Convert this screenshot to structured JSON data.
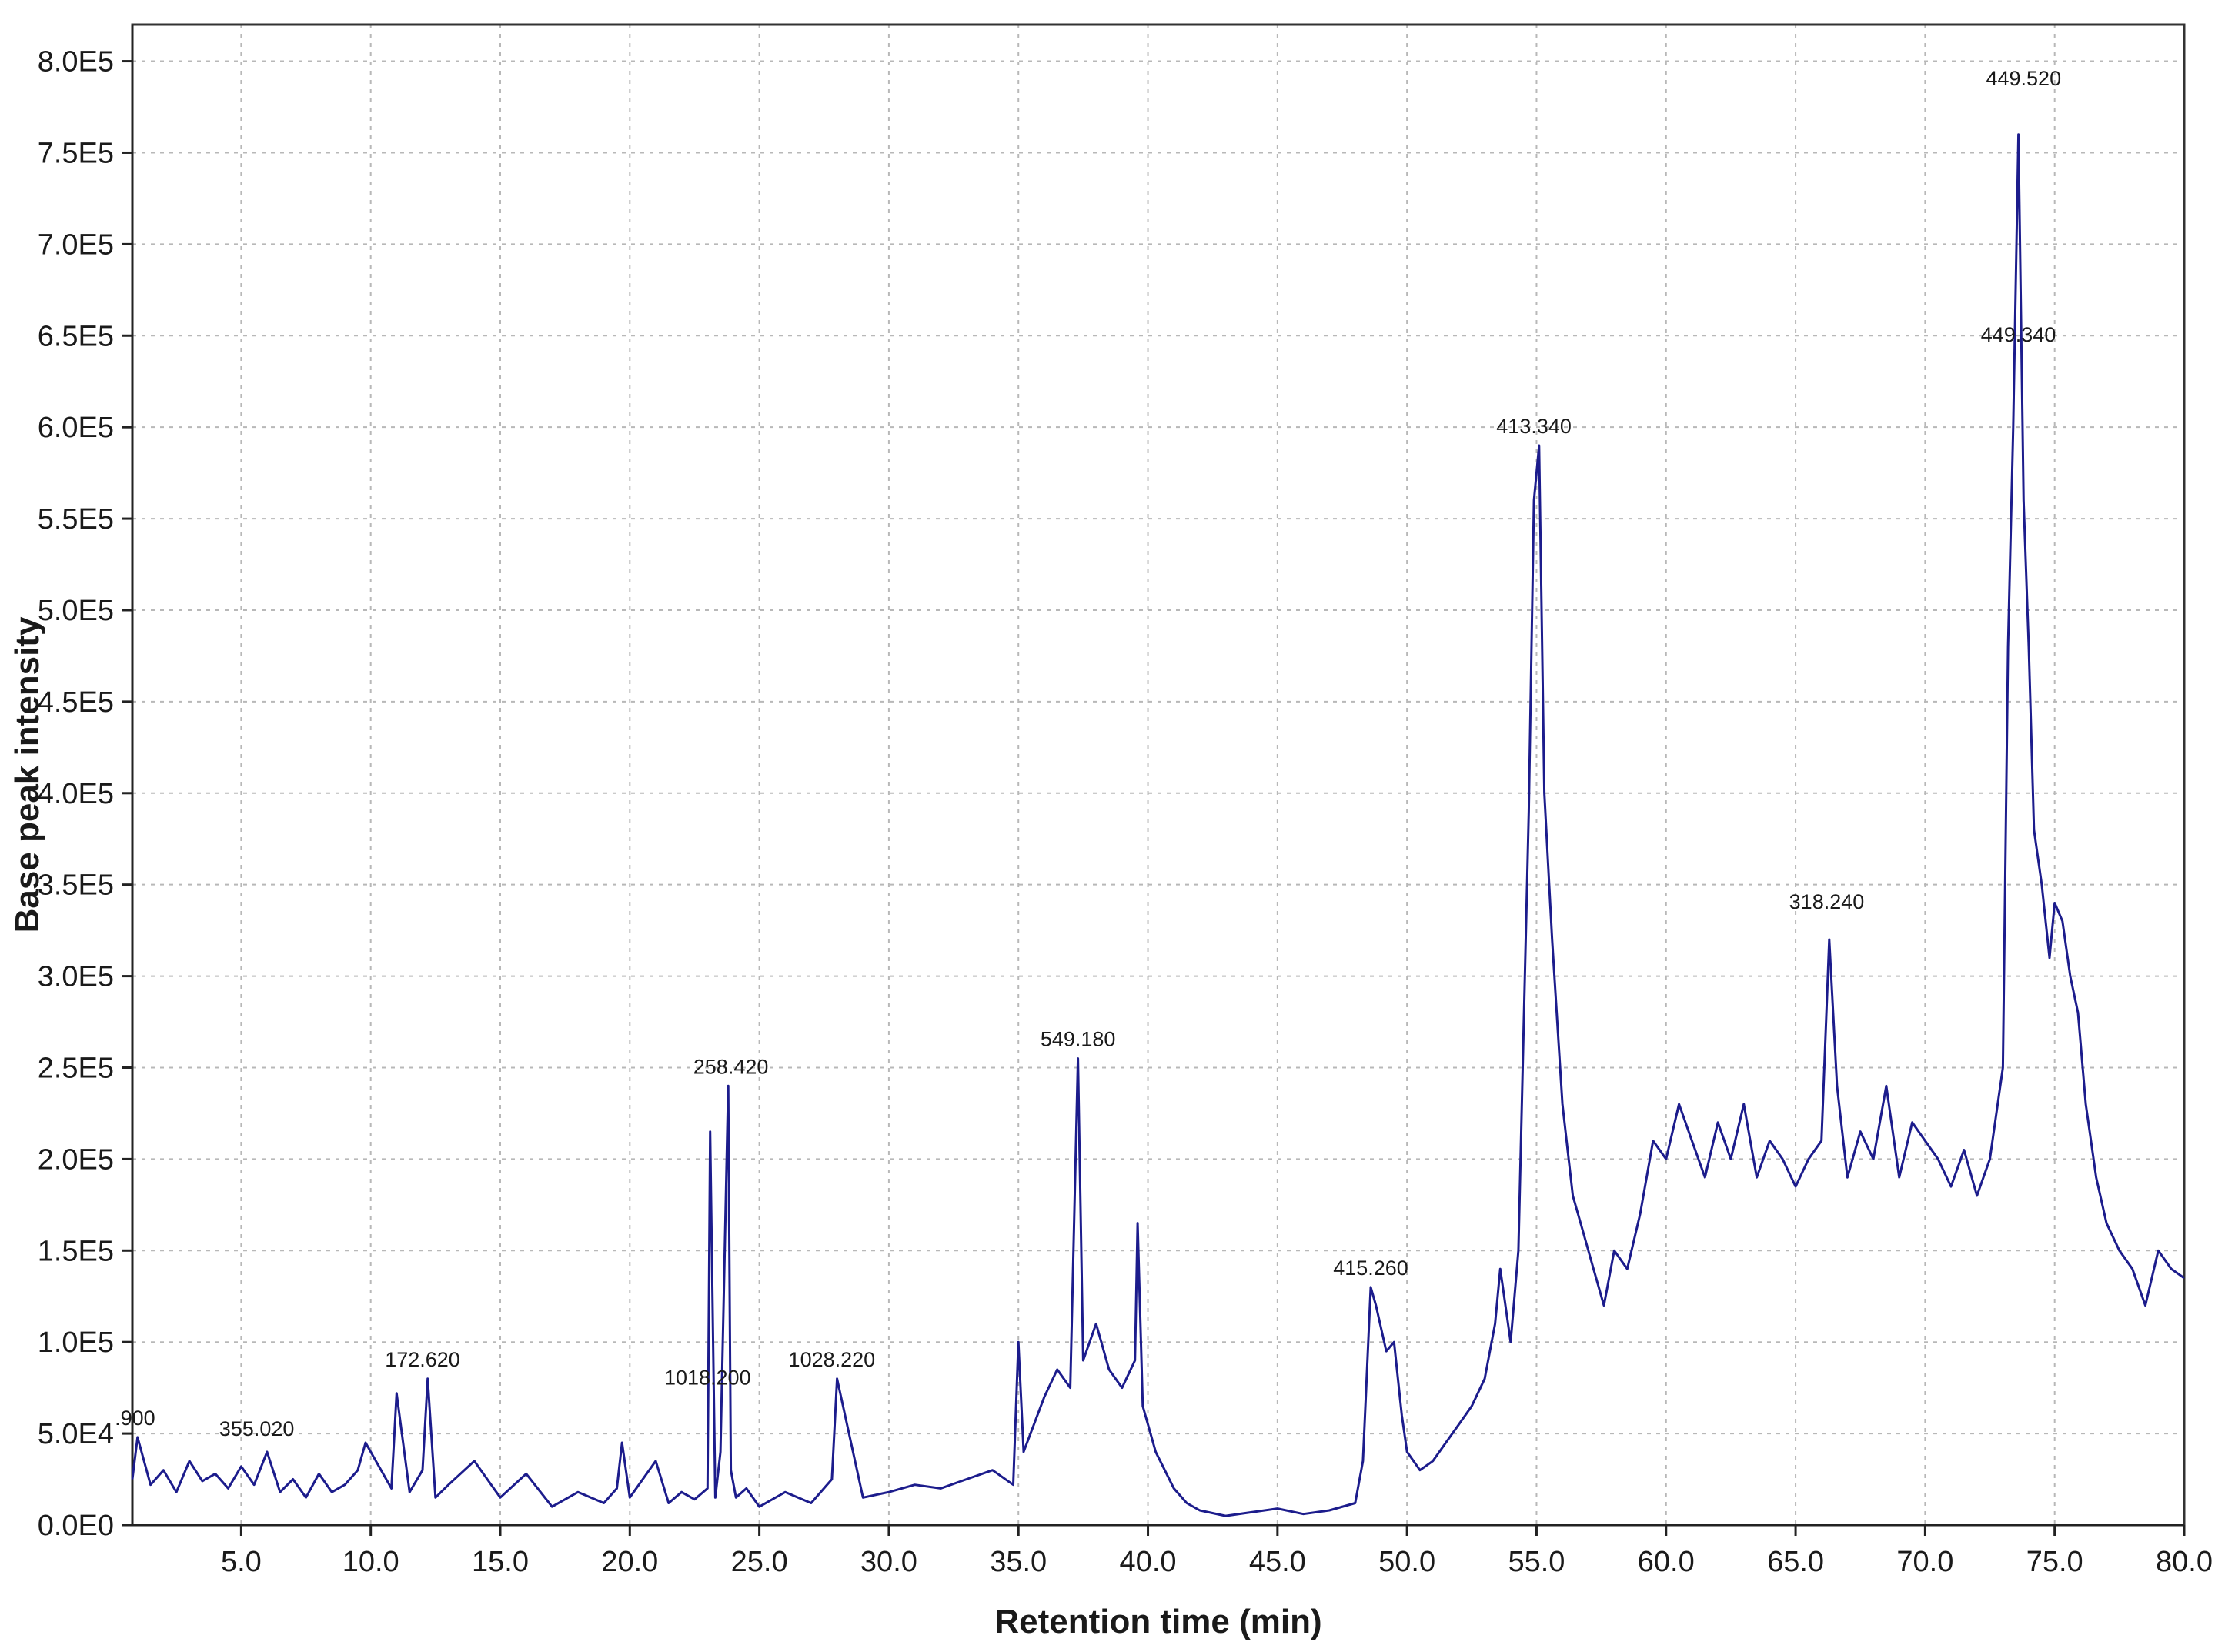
{
  "chart_data": {
    "type": "line",
    "title": "",
    "xlabel": "Retention time (min)",
    "ylabel": "Base peak intensity",
    "xlim": [
      0.8,
      80.0
    ],
    "ylim": [
      0,
      820000
    ],
    "grid": true,
    "x_ticks": [
      5,
      10,
      15,
      20,
      25,
      30,
      35,
      40,
      45,
      50,
      55,
      60,
      65,
      70,
      75,
      80
    ],
    "x_tick_labels": [
      "5.0",
      "10.0",
      "15.0",
      "20.0",
      "25.0",
      "30.0",
      "35.0",
      "40.0",
      "45.0",
      "50.0",
      "55.0",
      "60.0",
      "65.0",
      "70.0",
      "75.0",
      "80.0"
    ],
    "y_ticks": [
      0,
      50000,
      100000,
      150000,
      200000,
      250000,
      300000,
      350000,
      400000,
      450000,
      500000,
      550000,
      600000,
      650000,
      700000,
      750000,
      800000
    ],
    "y_tick_labels": [
      "0.0E0",
      "5.0E4",
      "1.0E5",
      "1.5E5",
      "2.0E5",
      "2.5E5",
      "3.0E5",
      "3.5E5",
      "4.0E5",
      "4.5E5",
      "5.0E5",
      "5.5E5",
      "6.0E5",
      "6.5E5",
      "7.0E5",
      "7.5E5",
      "8.0E5"
    ],
    "line_color": "#1c1c8c",
    "grid_color": "#b8b8b8",
    "series": [
      {
        "x": [
          0.8,
          1.0,
          1.5,
          2.0,
          2.5,
          3.0,
          3.5,
          4.0,
          4.5,
          5.0,
          5.5,
          6.0,
          6.5,
          7.0,
          7.5,
          8.0,
          8.5,
          9.0,
          9.5,
          9.8,
          10.2,
          10.8,
          11.0,
          11.5,
          12.0,
          12.2,
          12.5,
          13.0,
          14.0,
          15.0,
          16.0,
          17.0,
          18.0,
          19.0,
          19.5,
          19.7,
          20.0,
          21.0,
          21.5,
          22.0,
          22.5,
          23.0,
          23.1,
          23.3,
          23.5,
          23.8,
          23.9,
          24.1,
          24.5,
          25.0,
          26.0,
          27.0,
          27.8,
          28.0,
          29.0,
          30.0,
          31.0,
          32.0,
          33.0,
          34.0,
          34.8,
          35.0,
          35.2,
          36.0,
          36.5,
          37.0,
          37.3,
          37.5,
          38.0,
          38.5,
          39.0,
          39.5,
          39.6,
          39.8,
          40.3,
          41.0,
          41.5,
          42.0,
          43.0,
          44.0,
          45.0,
          46.0,
          47.0,
          48.0,
          48.3,
          48.6,
          48.8,
          49.2,
          49.5,
          49.8,
          50.0,
          50.5,
          51.0,
          51.5,
          52.0,
          52.5,
          53.0,
          53.4,
          53.6,
          54.0,
          54.3,
          54.5,
          54.7,
          54.9,
          55.1,
          55.3,
          55.6,
          56.0,
          56.4,
          56.8,
          57.2,
          57.6,
          58.0,
          58.5,
          59.0,
          59.5,
          60.0,
          60.5,
          61.0,
          61.5,
          62.0,
          62.5,
          63.0,
          63.5,
          64.0,
          64.5,
          65.0,
          65.5,
          66.0,
          66.3,
          66.6,
          67.0,
          67.5,
          68.0,
          68.5,
          69.0,
          69.5,
          70.0,
          70.5,
          71.0,
          71.5,
          72.0,
          72.5,
          73.0,
          73.2,
          73.4,
          73.6,
          73.8,
          74.0,
          74.2,
          74.5,
          74.8,
          75.0,
          75.3,
          75.6,
          75.9,
          76.2,
          76.6,
          77.0,
          77.5,
          78.0,
          78.5,
          79.0,
          79.5,
          80.0
        ],
        "y": [
          25000,
          48000,
          22000,
          30000,
          18000,
          35000,
          24000,
          28000,
          20000,
          32000,
          22000,
          40000,
          18000,
          25000,
          15000,
          28000,
          18000,
          22000,
          30000,
          45000,
          35000,
          20000,
          72000,
          18000,
          30000,
          80000,
          15000,
          22000,
          35000,
          15000,
          28000,
          10000,
          18000,
          12000,
          20000,
          45000,
          15000,
          35000,
          12000,
          18000,
          14000,
          20000,
          215000,
          15000,
          40000,
          240000,
          30000,
          15000,
          20000,
          10000,
          18000,
          12000,
          25000,
          80000,
          15000,
          18000,
          22000,
          20000,
          25000,
          30000,
          22000,
          100000,
          40000,
          70000,
          85000,
          75000,
          255000,
          90000,
          110000,
          85000,
          75000,
          90000,
          165000,
          65000,
          40000,
          20000,
          12000,
          8000,
          5000,
          7000,
          9000,
          6000,
          8000,
          12000,
          35000,
          130000,
          120000,
          95000,
          100000,
          60000,
          40000,
          30000,
          35000,
          45000,
          55000,
          65000,
          80000,
          110000,
          140000,
          100000,
          150000,
          270000,
          390000,
          560000,
          590000,
          400000,
          320000,
          230000,
          180000,
          160000,
          140000,
          120000,
          150000,
          140000,
          170000,
          210000,
          200000,
          230000,
          210000,
          190000,
          220000,
          200000,
          230000,
          190000,
          210000,
          200000,
          185000,
          200000,
          210000,
          320000,
          240000,
          190000,
          215000,
          200000,
          240000,
          190000,
          220000,
          210000,
          200000,
          185000,
          205000,
          180000,
          200000,
          250000,
          480000,
          600000,
          760000,
          560000,
          480000,
          380000,
          350000,
          310000,
          340000,
          330000,
          300000,
          280000,
          230000,
          190000,
          165000,
          150000,
          140000,
          120000,
          150000,
          140000,
          135000
        ]
      }
    ],
    "annotations": [
      {
        "x": 0.9,
        "y": 48000,
        "text": ".900"
      },
      {
        "x": 5.6,
        "y": 42000,
        "text": "355.020"
      },
      {
        "x": 12.0,
        "y": 80000,
        "text": "172.620"
      },
      {
        "x": 23.0,
        "y": 70000,
        "text": "1018.200"
      },
      {
        "x": 23.9,
        "y": 240000,
        "text": "258.420"
      },
      {
        "x": 27.8,
        "y": 80000,
        "text": "1028.220"
      },
      {
        "x": 37.3,
        "y": 255000,
        "text": "549.180"
      },
      {
        "x": 48.6,
        "y": 130000,
        "text": "415.260"
      },
      {
        "x": 54.9,
        "y": 590000,
        "text": "413.340"
      },
      {
        "x": 66.2,
        "y": 330000,
        "text": "318.240"
      },
      {
        "x": 73.6,
        "y": 640000,
        "text": "449.340"
      },
      {
        "x": 73.8,
        "y": 780000,
        "text": "449.520"
      }
    ]
  }
}
